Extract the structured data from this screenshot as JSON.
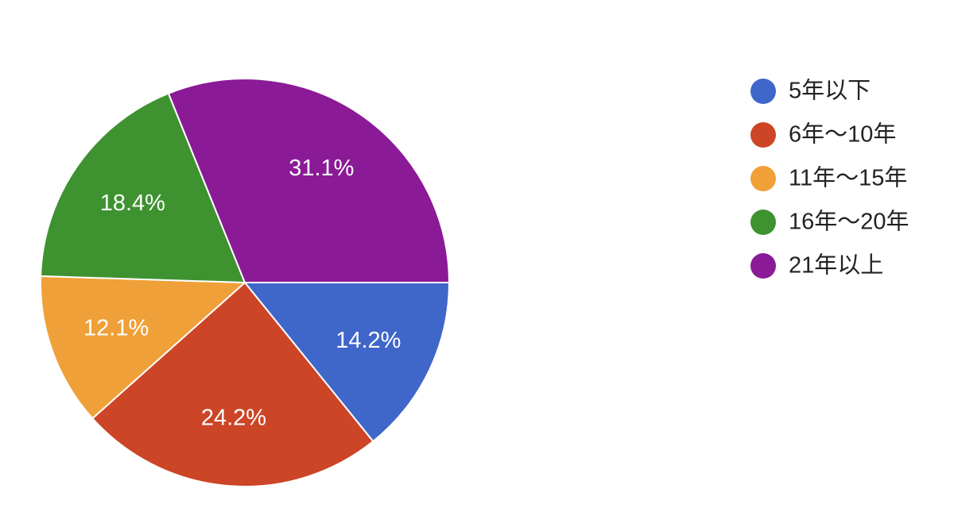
{
  "chart_data": {
    "type": "pie",
    "categories": [
      "5年以下",
      "6年〜10年",
      "11年〜15年",
      "16年〜20年",
      "21年以上"
    ],
    "values": [
      14.2,
      24.2,
      12.1,
      18.4,
      31.1
    ],
    "value_labels": [
      "14.2%",
      "24.2%",
      "12.1%",
      "18.4%",
      "31.1%"
    ],
    "colors": [
      "#3f66c9",
      "#cc4526",
      "#f0a038",
      "#3e9230",
      "#8b1a97"
    ],
    "legend": "right"
  }
}
